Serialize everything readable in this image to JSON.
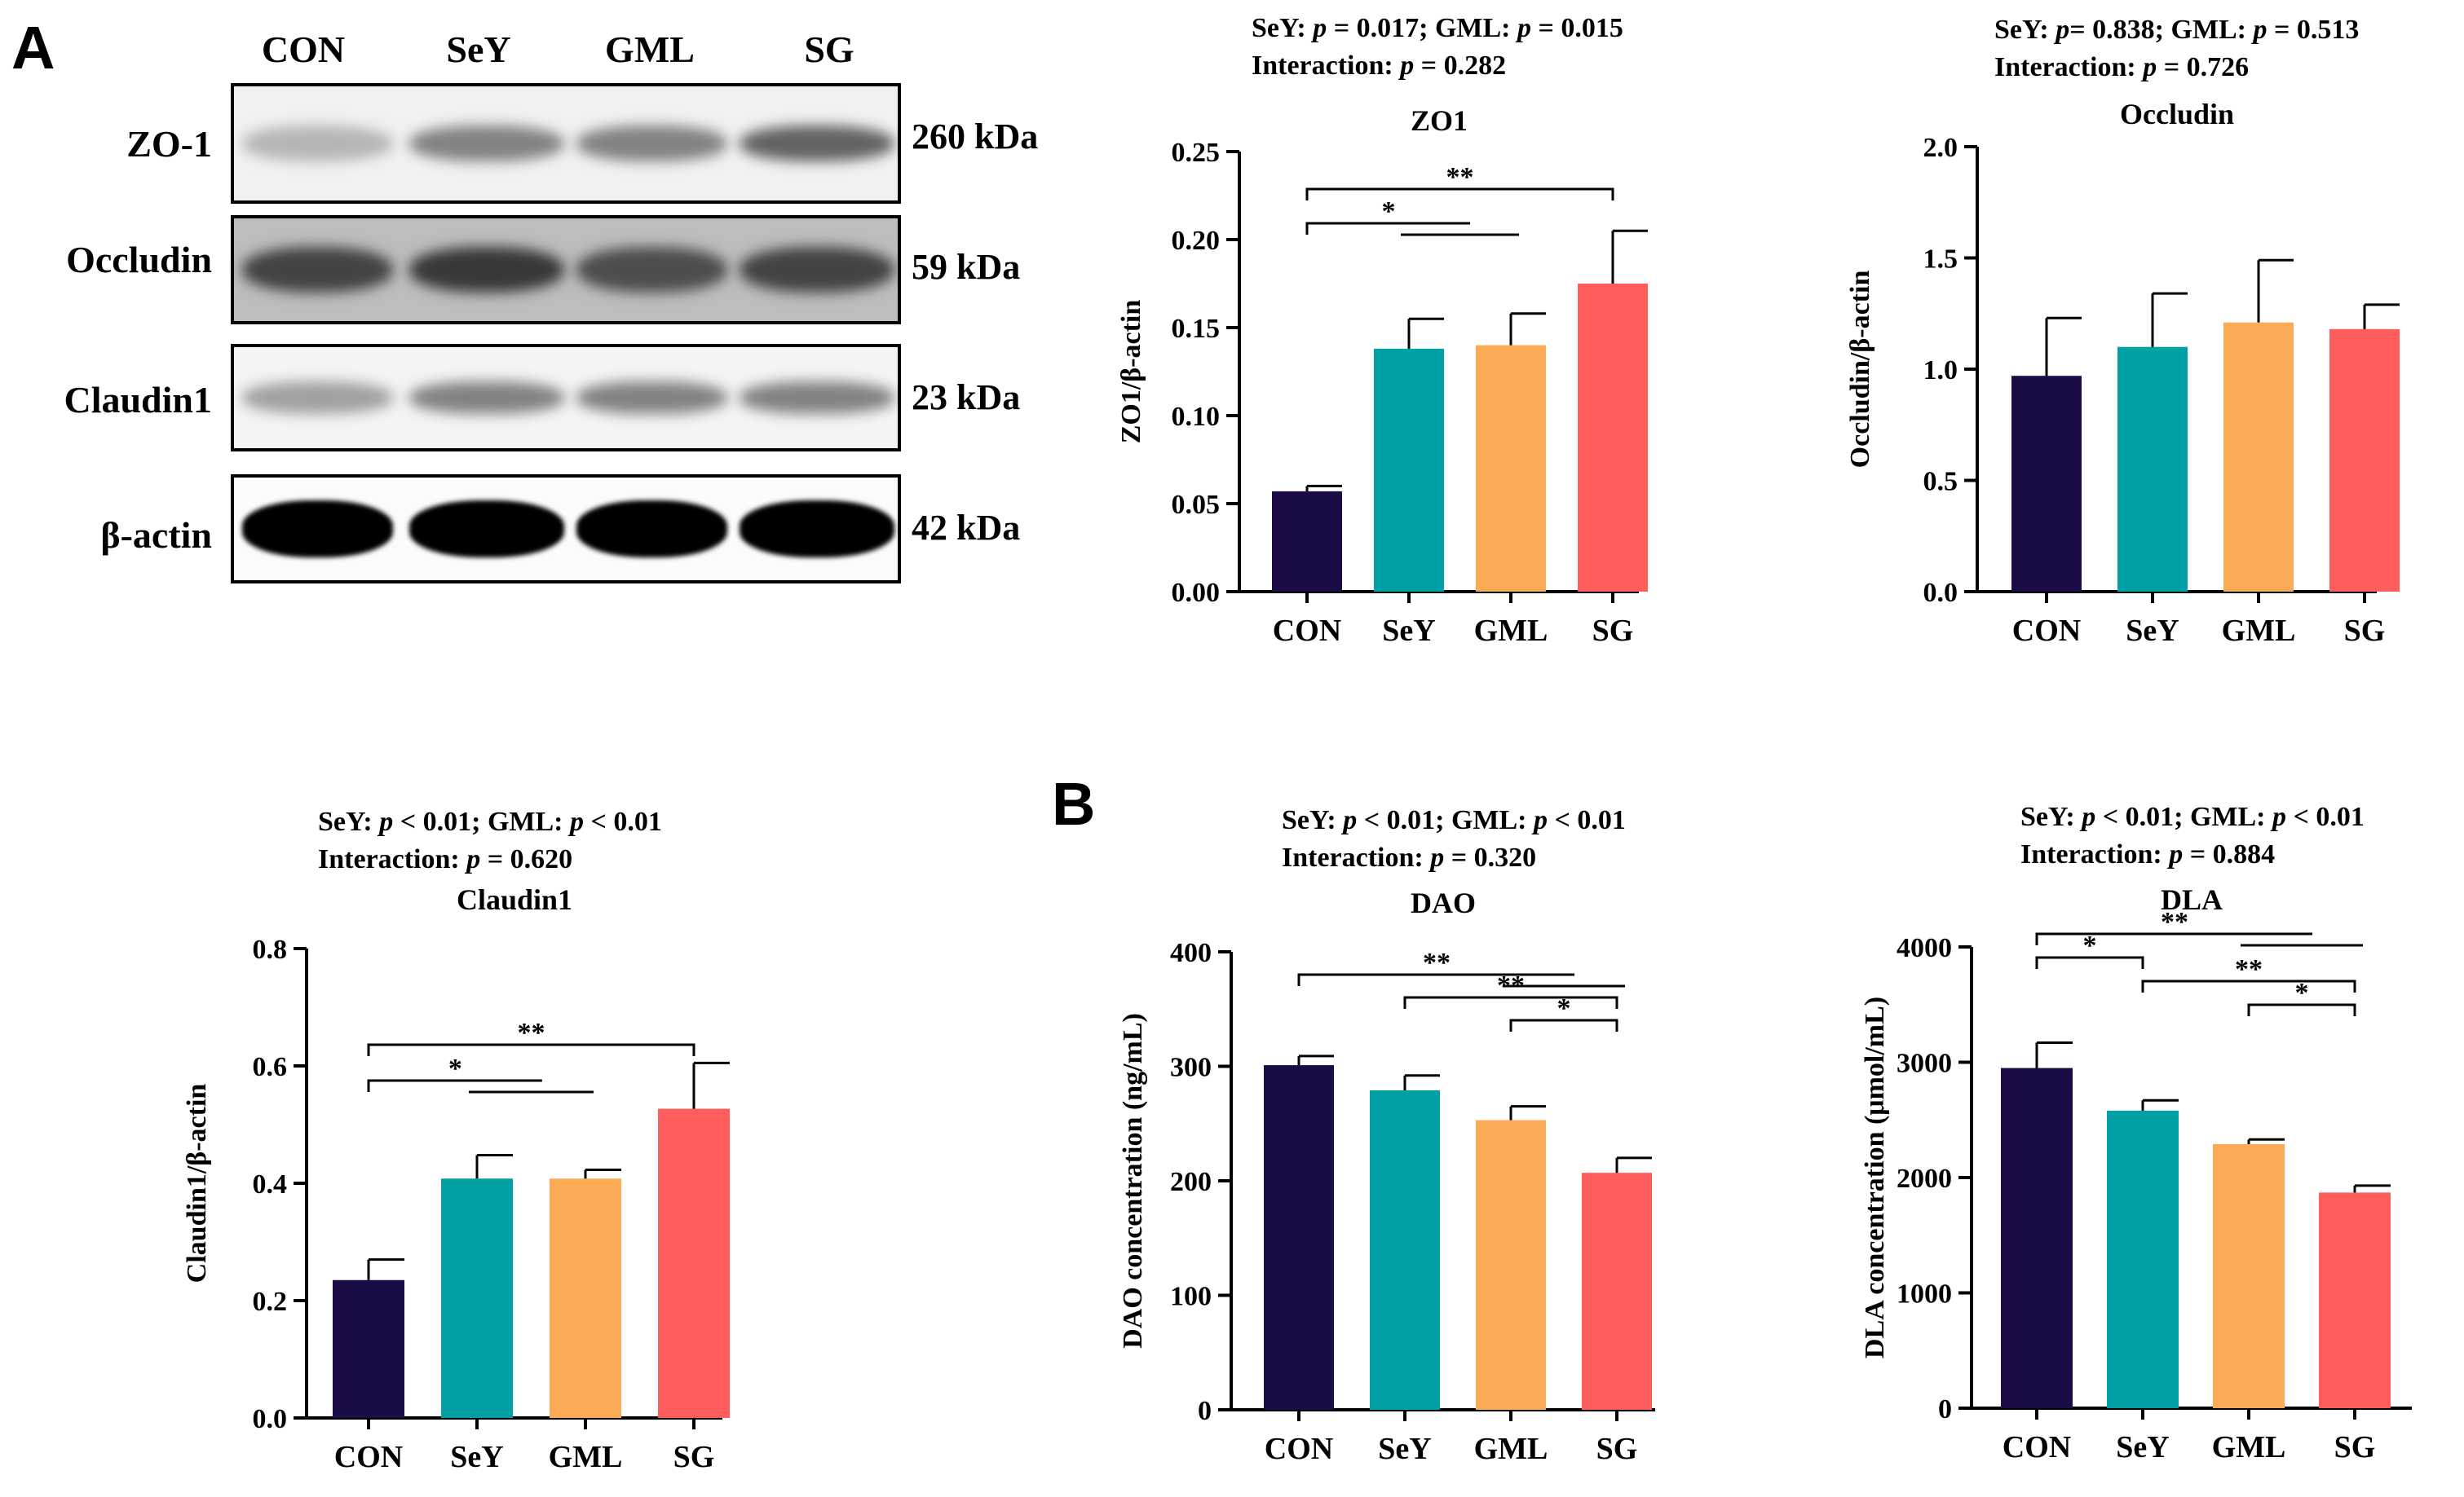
{
  "panel_labels": {
    "a": "A",
    "b": "B"
  },
  "western_blot": {
    "lanes": [
      "CON",
      "SeY",
      "GML",
      "SG"
    ],
    "rows": [
      {
        "name": "ZO-1",
        "kda": "260 kDa",
        "intensity": [
          0.35,
          0.6,
          0.6,
          0.75
        ]
      },
      {
        "name": "Occludin",
        "kda": "59 kDa",
        "intensity": [
          0.9,
          0.95,
          0.85,
          0.9
        ]
      },
      {
        "name": "Claudin1",
        "kda": "23 kDa",
        "intensity": [
          0.45,
          0.6,
          0.6,
          0.6
        ]
      },
      {
        "name": "β-actin",
        "kda": "42 kDa",
        "intensity": [
          1.0,
          1.0,
          1.0,
          1.0
        ]
      }
    ]
  },
  "colors": {
    "CON": "#1c0c45",
    "SeY": "#00a0a4",
    "GML": "#fbaa55",
    "SG": "#ff5c5c"
  },
  "chart_data": [
    {
      "id": "zo1",
      "type": "bar",
      "title": "ZO1",
      "xlabel": "",
      "ylabel": "ZO1/β-actin",
      "stats_line1": {
        "a_label": "SeY: ",
        "a_p": "p",
        "a_val": " = 0.017;  GML: ",
        "b_p": "p",
        "b_val": " = 0.015"
      },
      "stats_line2": {
        "label": "Interaction: ",
        "p": "p",
        "val": " = 0.282"
      },
      "categories": [
        "CON",
        "SeY",
        "GML",
        "SG"
      ],
      "values": [
        0.057,
        0.138,
        0.14,
        0.175
      ],
      "errors": [
        0.003,
        0.017,
        0.018,
        0.03
      ],
      "ylim": [
        0,
        0.25
      ],
      "yticks": [
        "0.00",
        "0.05",
        "0.10",
        "0.15",
        "0.20",
        "0.25"
      ],
      "ytick_values": [
        0,
        0.05,
        0.1,
        0.15,
        0.2,
        0.25
      ],
      "brackets": [
        {
          "from": 0,
          "to": 3,
          "label": "**",
          "level": 1,
          "group_end": false
        },
        {
          "from": 0,
          "to": 1.6,
          "label": "*",
          "level": 0,
          "group_end": true,
          "group": [
            1,
            2
          ]
        }
      ]
    },
    {
      "id": "occludin",
      "type": "bar",
      "title": "Occludin",
      "xlabel": "",
      "ylabel": "Occludin/β-actin",
      "stats_line1": {
        "a_label": "SeY: ",
        "a_p": "p",
        "a_val": "= 0.838;  GML: ",
        "b_p": "p",
        "b_val": " = 0.513"
      },
      "stats_line2": {
        "label": "Interaction: ",
        "p": "p",
        "val": " = 0.726"
      },
      "categories": [
        "CON",
        "SeY",
        "GML",
        "SG"
      ],
      "values": [
        0.97,
        1.1,
        1.21,
        1.18
      ],
      "errors": [
        0.26,
        0.24,
        0.28,
        0.11
      ],
      "ylim": [
        0,
        2.0
      ],
      "yticks": [
        "0.0",
        "0.5",
        "1.0",
        "1.5",
        "2.0"
      ],
      "ytick_values": [
        0,
        0.5,
        1.0,
        1.5,
        2.0
      ],
      "brackets": []
    },
    {
      "id": "claudin1",
      "type": "bar",
      "title": "Claudin1",
      "xlabel": "",
      "ylabel": "Claudin1/β-actin",
      "stats_line1": {
        "a_label": "SeY: ",
        "a_p": "p",
        "a_val": " < 0.01;  GML: ",
        "b_p": "p",
        "b_val": " < 0.01"
      },
      "stats_line2": {
        "label": "Interaction: ",
        "p": "p",
        "val": " = 0.620"
      },
      "categories": [
        "CON",
        "SeY",
        "GML",
        "SG"
      ],
      "values": [
        0.235,
        0.408,
        0.408,
        0.527
      ],
      "errors": [
        0.035,
        0.04,
        0.015,
        0.078
      ],
      "ylim": [
        0,
        0.8
      ],
      "yticks": [
        "0.0",
        "0.2",
        "0.4",
        "0.6",
        "0.8"
      ],
      "ytick_values": [
        0,
        0.2,
        0.4,
        0.6,
        0.8
      ],
      "brackets": [
        {
          "from": 0,
          "to": 3,
          "label": "**",
          "level": 1,
          "group_end": false
        },
        {
          "from": 0,
          "to": 1.6,
          "label": "*",
          "level": 0,
          "group_end": true,
          "group": [
            1,
            2
          ]
        }
      ]
    },
    {
      "id": "dao",
      "type": "bar",
      "title": "DAO",
      "xlabel": "",
      "ylabel": "DAO concentration (ng/mL)",
      "stats_line1": {
        "a_label": "SeY: ",
        "a_p": "p",
        "a_val": " < 0.01;  GML: ",
        "b_p": "p",
        "b_val": " < 0.01"
      },
      "stats_line2": {
        "label": "Interaction: ",
        "p": "p",
        "val": " = 0.320"
      },
      "categories": [
        "CON",
        "SeY",
        "GML",
        "SG"
      ],
      "values": [
        301,
        279,
        253,
        207
      ],
      "errors": [
        8,
        13,
        12,
        13
      ],
      "ylim": [
        0,
        400
      ],
      "yticks": [
        "0",
        "100",
        "200",
        "300",
        "400"
      ],
      "ytick_values": [
        0,
        100,
        200,
        300,
        400
      ],
      "brackets": [
        {
          "from": 0,
          "to": 2.6,
          "label": "**",
          "level": 3,
          "group_end": true,
          "group": [
            2,
            3
          ]
        },
        {
          "from": 1,
          "to": 3,
          "label": "**",
          "level": 2,
          "group_end": false
        },
        {
          "from": 2,
          "to": 3,
          "label": "*",
          "level": 1,
          "group_end": false
        }
      ]
    },
    {
      "id": "dla",
      "type": "bar",
      "title": "DLA",
      "xlabel": "",
      "ylabel": "DLA concentration (μmol/mL)",
      "stats_line1": {
        "a_label": "SeY: ",
        "a_p": "p",
        "a_val": " < 0.01;  GML: ",
        "b_p": "p",
        "b_val": " < 0.01"
      },
      "stats_line2": {
        "label": "Interaction: ",
        "p": "p",
        "val": " = 0.884"
      },
      "categories": [
        "CON",
        "SeY",
        "GML",
        "SG"
      ],
      "values": [
        2950,
        2580,
        2290,
        1870
      ],
      "errors": [
        220,
        90,
        40,
        60
      ],
      "ylim": [
        0,
        4000
      ],
      "yticks": [
        "0",
        "1000",
        "2000",
        "3000",
        "4000"
      ],
      "ytick_values": [
        0,
        1000,
        2000,
        3000,
        4000
      ],
      "brackets": [
        {
          "from": 0,
          "to": 2.6,
          "label": "**",
          "level": 4,
          "group_end": true,
          "group": [
            2,
            3
          ]
        },
        {
          "from": 0,
          "to": 1,
          "label": "*",
          "level": 3,
          "group_end": false
        },
        {
          "from": 1,
          "to": 3,
          "label": "**",
          "level": 2,
          "group_end": false
        },
        {
          "from": 2,
          "to": 3,
          "label": "*",
          "level": 1,
          "group_end": false
        }
      ]
    }
  ]
}
